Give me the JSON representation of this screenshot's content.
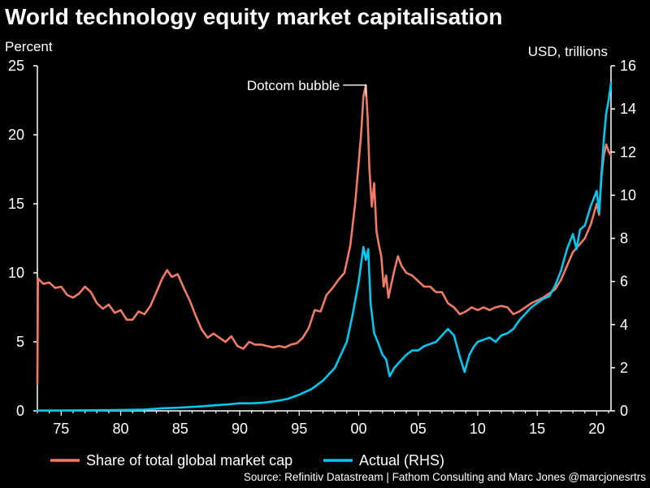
{
  "chart_data": {
    "type": "line",
    "title": "World technology equity market capitalisation",
    "ylabel_left": "Percent",
    "ylabel_right": "USD, trillions",
    "x_range": [
      1973,
      2021.2
    ],
    "x_ticks": [
      1975,
      1980,
      1985,
      1990,
      1995,
      2000,
      2005,
      2010,
      2015,
      2020
    ],
    "x_tick_labels": [
      "75",
      "80",
      "85",
      "90",
      "95",
      "00",
      "05",
      "10",
      "15",
      "20"
    ],
    "ylim_left": [
      0,
      25
    ],
    "yticks_left": [
      0,
      5,
      10,
      15,
      20,
      25
    ],
    "ylim_right": [
      0,
      16
    ],
    "yticks_right": [
      0,
      2,
      4,
      6,
      8,
      10,
      12,
      14,
      16
    ],
    "annotation": {
      "text": "Dotcom bubble",
      "x": 2000.6,
      "y": 23.6
    },
    "series": [
      {
        "name": "Share of total global market cap",
        "axis": "left",
        "color": "#f07a66",
        "points": [
          [
            1973.0,
            2.0
          ],
          [
            1973.05,
            9.6
          ],
          [
            1973.5,
            9.2
          ],
          [
            1974,
            9.3
          ],
          [
            1974.5,
            8.9
          ],
          [
            1975,
            9.0
          ],
          [
            1975.5,
            8.4
          ],
          [
            1976,
            8.2
          ],
          [
            1976.5,
            8.5
          ],
          [
            1977,
            9.0
          ],
          [
            1977.5,
            8.6
          ],
          [
            1978,
            7.8
          ],
          [
            1978.5,
            7.4
          ],
          [
            1979,
            7.7
          ],
          [
            1979.5,
            7.1
          ],
          [
            1980,
            7.3
          ],
          [
            1980.5,
            6.6
          ],
          [
            1981,
            6.6
          ],
          [
            1981.5,
            7.2
          ],
          [
            1982,
            7.0
          ],
          [
            1982.5,
            7.6
          ],
          [
            1983,
            8.6
          ],
          [
            1983.5,
            9.6
          ],
          [
            1983.9,
            10.2
          ],
          [
            1984.3,
            9.7
          ],
          [
            1984.8,
            9.9
          ],
          [
            1985.3,
            8.9
          ],
          [
            1985.8,
            8.0
          ],
          [
            1986.3,
            6.9
          ],
          [
            1986.8,
            5.9
          ],
          [
            1987.3,
            5.3
          ],
          [
            1987.8,
            5.6
          ],
          [
            1988.3,
            5.3
          ],
          [
            1988.8,
            5.0
          ],
          [
            1989.3,
            5.4
          ],
          [
            1989.8,
            4.7
          ],
          [
            1990.3,
            4.5
          ],
          [
            1990.8,
            5.0
          ],
          [
            1991.3,
            4.8
          ],
          [
            1991.8,
            4.8
          ],
          [
            1992.3,
            4.7
          ],
          [
            1992.8,
            4.6
          ],
          [
            1993.3,
            4.7
          ],
          [
            1993.8,
            4.6
          ],
          [
            1994.3,
            4.8
          ],
          [
            1994.8,
            4.9
          ],
          [
            1995.3,
            5.3
          ],
          [
            1995.8,
            6.0
          ],
          [
            1996.3,
            7.3
          ],
          [
            1996.8,
            7.2
          ],
          [
            1997.3,
            8.4
          ],
          [
            1997.8,
            8.9
          ],
          [
            1998.3,
            9.5
          ],
          [
            1998.8,
            10.0
          ],
          [
            1999.3,
            12.0
          ],
          [
            1999.7,
            15.0
          ],
          [
            2000.0,
            18.0
          ],
          [
            2000.2,
            20.0
          ],
          [
            2000.4,
            22.8
          ],
          [
            2000.6,
            23.6
          ],
          [
            2000.75,
            21.2
          ],
          [
            2000.9,
            17.5
          ],
          [
            2001.1,
            14.8
          ],
          [
            2001.3,
            16.5
          ],
          [
            2001.5,
            13.0
          ],
          [
            2001.7,
            12.0
          ],
          [
            2001.9,
            11.2
          ],
          [
            2002.1,
            9.0
          ],
          [
            2002.3,
            9.8
          ],
          [
            2002.5,
            8.2
          ],
          [
            2002.7,
            9.0
          ],
          [
            2003.0,
            10.2
          ],
          [
            2003.3,
            11.2
          ],
          [
            2003.6,
            10.5
          ],
          [
            2004.0,
            10.0
          ],
          [
            2004.5,
            9.8
          ],
          [
            2005.0,
            9.4
          ],
          [
            2005.5,
            9.0
          ],
          [
            2006.0,
            9.0
          ],
          [
            2006.5,
            8.6
          ],
          [
            2007.0,
            8.6
          ],
          [
            2007.5,
            7.8
          ],
          [
            2008.0,
            7.5
          ],
          [
            2008.5,
            7.0
          ],
          [
            2009.0,
            7.2
          ],
          [
            2009.5,
            7.5
          ],
          [
            2010.0,
            7.3
          ],
          [
            2010.5,
            7.5
          ],
          [
            2011.0,
            7.3
          ],
          [
            2011.5,
            7.5
          ],
          [
            2012.0,
            7.6
          ],
          [
            2012.5,
            7.5
          ],
          [
            2013.0,
            7.0
          ],
          [
            2013.5,
            7.2
          ],
          [
            2014.0,
            7.5
          ],
          [
            2014.5,
            7.8
          ],
          [
            2015.0,
            8.0
          ],
          [
            2015.5,
            8.2
          ],
          [
            2016.0,
            8.5
          ],
          [
            2016.5,
            8.8
          ],
          [
            2017.0,
            9.5
          ],
          [
            2017.5,
            10.5
          ],
          [
            2018.0,
            11.5
          ],
          [
            2018.5,
            12.0
          ],
          [
            2019.0,
            12.5
          ],
          [
            2019.5,
            13.5
          ],
          [
            2020.0,
            15.0
          ],
          [
            2020.2,
            14.2
          ],
          [
            2020.4,
            17.0
          ],
          [
            2020.6,
            18.5
          ],
          [
            2020.8,
            19.3
          ],
          [
            2021.0,
            18.8
          ],
          [
            2021.2,
            18.5
          ]
        ]
      },
      {
        "name": "Actual (RHS)",
        "axis": "right",
        "color": "#00c8f0",
        "points": [
          [
            1973.0,
            0.02
          ],
          [
            1975.0,
            0.02
          ],
          [
            1978.0,
            0.03
          ],
          [
            1980.0,
            0.04
          ],
          [
            1982.0,
            0.06
          ],
          [
            1983.5,
            0.12
          ],
          [
            1985.0,
            0.15
          ],
          [
            1986.0,
            0.18
          ],
          [
            1987.0,
            0.22
          ],
          [
            1988.0,
            0.26
          ],
          [
            1989.0,
            0.3
          ],
          [
            1990.0,
            0.35
          ],
          [
            1991.0,
            0.35
          ],
          [
            1992.0,
            0.38
          ],
          [
            1993.0,
            0.45
          ],
          [
            1994.0,
            0.55
          ],
          [
            1995.0,
            0.75
          ],
          [
            1996.0,
            1.0
          ],
          [
            1997.0,
            1.4
          ],
          [
            1998.0,
            2.0
          ],
          [
            1998.5,
            2.6
          ],
          [
            1999.0,
            3.2
          ],
          [
            1999.5,
            4.5
          ],
          [
            2000.0,
            6.0
          ],
          [
            2000.4,
            7.6
          ],
          [
            2000.6,
            7.0
          ],
          [
            2000.8,
            7.5
          ],
          [
            2001.0,
            5.0
          ],
          [
            2001.3,
            3.6
          ],
          [
            2001.6,
            3.2
          ],
          [
            2002.0,
            2.6
          ],
          [
            2002.3,
            2.4
          ],
          [
            2002.6,
            1.6
          ],
          [
            2003.0,
            2.0
          ],
          [
            2003.5,
            2.3
          ],
          [
            2004.0,
            2.6
          ],
          [
            2004.5,
            2.8
          ],
          [
            2005.0,
            2.8
          ],
          [
            2005.5,
            3.0
          ],
          [
            2006.0,
            3.1
          ],
          [
            2006.5,
            3.2
          ],
          [
            2007.0,
            3.5
          ],
          [
            2007.5,
            3.8
          ],
          [
            2008.0,
            3.5
          ],
          [
            2008.5,
            2.5
          ],
          [
            2008.9,
            1.8
          ],
          [
            2009.3,
            2.6
          ],
          [
            2009.7,
            3.0
          ],
          [
            2010.0,
            3.2
          ],
          [
            2010.5,
            3.3
          ],
          [
            2011.0,
            3.4
          ],
          [
            2011.5,
            3.2
          ],
          [
            2012.0,
            3.5
          ],
          [
            2012.5,
            3.6
          ],
          [
            2013.0,
            3.8
          ],
          [
            2013.5,
            4.2
          ],
          [
            2014.0,
            4.5
          ],
          [
            2014.5,
            4.8
          ],
          [
            2015.0,
            5.0
          ],
          [
            2015.5,
            5.2
          ],
          [
            2016.0,
            5.3
          ],
          [
            2016.5,
            5.8
          ],
          [
            2017.0,
            6.5
          ],
          [
            2017.5,
            7.5
          ],
          [
            2018.0,
            8.2
          ],
          [
            2018.3,
            7.5
          ],
          [
            2018.6,
            8.4
          ],
          [
            2019.0,
            8.6
          ],
          [
            2019.5,
            9.5
          ],
          [
            2020.0,
            10.2
          ],
          [
            2020.2,
            9.2
          ],
          [
            2020.4,
            11.0
          ],
          [
            2020.6,
            12.6
          ],
          [
            2020.8,
            13.8
          ],
          [
            2021.0,
            14.4
          ],
          [
            2021.2,
            15.2
          ]
        ]
      }
    ]
  },
  "source": "Source: Refinitiv Datastream | Fathom Consulting and Marc Jones @marcjonesrtrs"
}
